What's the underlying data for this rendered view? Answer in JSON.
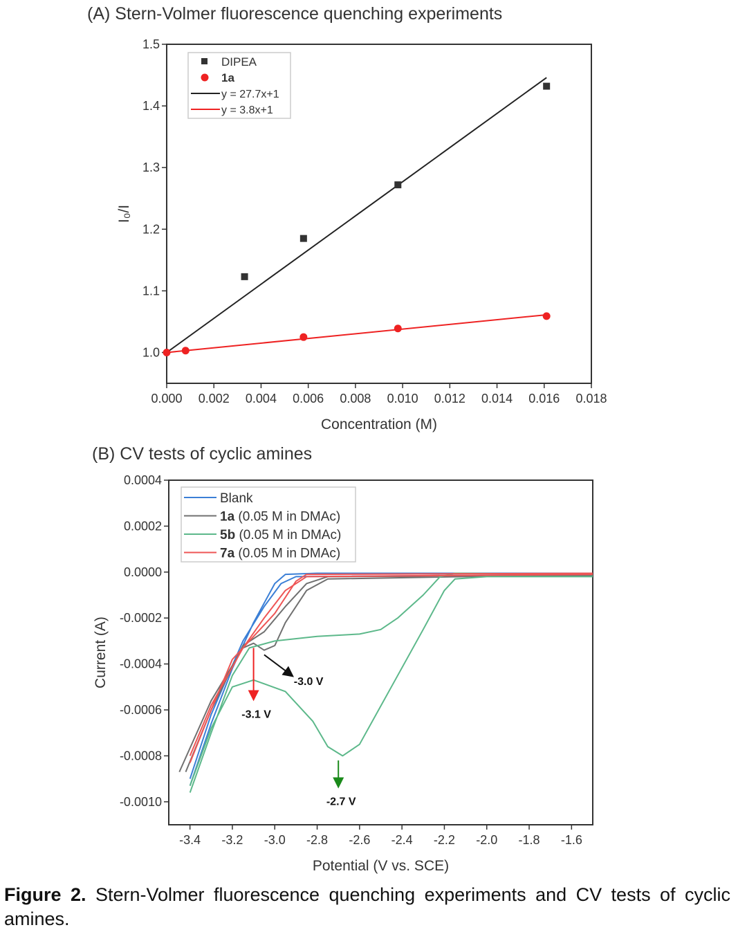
{
  "chart_data": [
    {
      "type": "scatter",
      "title": "(A) Stern-Volmer fluorescence quenching experiments",
      "xlabel": "Concentration (M)",
      "ylabel": "I₀/I",
      "xlim": [
        0.0,
        0.018
      ],
      "ylim": [
        0.95,
        1.5
      ],
      "xticks": [
        "0.000",
        "0.002",
        "0.004",
        "0.006",
        "0.008",
        "0.010",
        "0.012",
        "0.014",
        "0.016",
        "0.018"
      ],
      "yticks": [
        "1.0",
        "1.1",
        "1.2",
        "1.3",
        "1.4",
        "1.5"
      ],
      "grid": false,
      "legend_position": "top-left",
      "series": [
        {
          "name": "DIPEA",
          "marker": "square",
          "color": "#333333",
          "x": [
            0.0033,
            0.0058,
            0.0098,
            0.0161
          ],
          "y": [
            1.123,
            1.185,
            1.272,
            1.432
          ]
        },
        {
          "name": "1a",
          "marker": "circle",
          "color": "#ee2222",
          "x": [
            0.0,
            0.0008,
            0.0058,
            0.0098,
            0.0161
          ],
          "y": [
            1.0,
            1.003,
            1.025,
            1.039,
            1.059
          ]
        }
      ],
      "fits": [
        {
          "name": "y = 27.7x+1",
          "slope": 27.7,
          "intercept": 1,
          "x_range": [
            0,
            0.0161
          ],
          "color": "#222222"
        },
        {
          "name": "y = 3.8x+1",
          "slope": 3.8,
          "intercept": 1,
          "x_range": [
            0,
            0.0161
          ],
          "color": "#ee2222"
        }
      ]
    },
    {
      "type": "line",
      "title": "(B) CV tests of cyclic amines",
      "xlabel": "Potential (V vs. SCE)",
      "ylabel": "Current (A)",
      "xlim": [
        -3.5,
        -1.5
      ],
      "ylim": [
        -0.0011,
        0.0004
      ],
      "xticks": [
        "-3.4",
        "-3.2",
        "-3.0",
        "-2.8",
        "-2.6",
        "-2.4",
        "-2.2",
        "-2.0",
        "-1.8",
        "-1.6"
      ],
      "yticks": [
        "0.0004",
        "0.0002",
        "0.0000",
        "-0.0002",
        "-0.0004",
        "-0.0006",
        "-0.0008",
        "-0.0010"
      ],
      "grid": false,
      "legend_position": "top-left",
      "series": [
        {
          "name_bold": "Blank",
          "name_rest": "",
          "color": "#3b7fd6",
          "points": [
            [
              -3.4,
              -0.00093
            ],
            [
              -3.3,
              -0.00066
            ],
            [
              -3.2,
              -0.00042
            ],
            [
              -3.1,
              -0.00022
            ],
            [
              -3.0,
              -5e-05
            ],
            [
              -2.95,
              -1e-05
            ],
            [
              -2.8,
              -5e-06
            ],
            [
              -1.5,
              -5e-06
            ],
            [
              -1.5,
              -1e-05
            ],
            [
              -2.9,
              -2e-05
            ],
            [
              -2.97,
              -5e-05
            ],
            [
              -3.05,
              -0.00015
            ],
            [
              -3.15,
              -0.0003
            ],
            [
              -3.3,
              -0.00062
            ],
            [
              -3.4,
              -0.0009
            ]
          ]
        },
        {
          "name_bold": "1a",
          "name_rest": " (0.05 M in DMAc)",
          "color": "#707070",
          "points": [
            [
              -3.45,
              -0.00087
            ],
            [
              -3.3,
              -0.00056
            ],
            [
              -3.15,
              -0.00033
            ],
            [
              -3.1,
              -0.00031
            ],
            [
              -3.05,
              -0.00034
            ],
            [
              -3.0,
              -0.00032
            ],
            [
              -2.95,
              -0.00022
            ],
            [
              -2.85,
              -8e-05
            ],
            [
              -2.75,
              -3e-05
            ],
            [
              -1.5,
              -1e-05
            ],
            [
              -1.5,
              -1.5e-05
            ],
            [
              -2.75,
              -2e-05
            ],
            [
              -2.85,
              -5e-05
            ],
            [
              -2.95,
              -0.00015
            ],
            [
              -3.05,
              -0.00026
            ],
            [
              -3.15,
              -0.00032
            ],
            [
              -3.3,
              -0.0006
            ],
            [
              -3.42,
              -0.00087
            ]
          ]
        },
        {
          "name_bold": "5b",
          "name_rest": " (0.05 M in DMAc)",
          "color": "#5cb88a",
          "points": [
            [
              -3.4,
              -0.00096
            ],
            [
              -3.3,
              -0.0007
            ],
            [
              -3.2,
              -0.00045
            ],
            [
              -3.12,
              -0.00033
            ],
            [
              -3.0,
              -0.0003
            ],
            [
              -2.8,
              -0.00028
            ],
            [
              -2.6,
              -0.00027
            ],
            [
              -2.5,
              -0.00025
            ],
            [
              -2.42,
              -0.0002
            ],
            [
              -2.3,
              -0.0001
            ],
            [
              -2.22,
              -2e-05
            ],
            [
              -2.15,
              -5e-06
            ],
            [
              -1.5,
              -1e-05
            ],
            [
              -1.5,
              -2e-05
            ],
            [
              -2.0,
              -2e-05
            ],
            [
              -2.15,
              -3e-05
            ],
            [
              -2.2,
              -8e-05
            ],
            [
              -2.3,
              -0.00025
            ],
            [
              -2.45,
              -0.0005
            ],
            [
              -2.6,
              -0.00075
            ],
            [
              -2.68,
              -0.0008
            ],
            [
              -2.75,
              -0.00076
            ],
            [
              -2.82,
              -0.00065
            ],
            [
              -2.95,
              -0.00052
            ],
            [
              -3.1,
              -0.00047
            ],
            [
              -3.2,
              -0.0005
            ],
            [
              -3.3,
              -0.00068
            ],
            [
              -3.4,
              -0.00093
            ]
          ]
        },
        {
          "name_bold": "7a",
          "name_rest": " (0.05 M in DMAc)",
          "color": "#ee5555",
          "points": [
            [
              -3.4,
              -0.00083
            ],
            [
              -3.3,
              -0.0006
            ],
            [
              -3.2,
              -0.00038
            ],
            [
              -3.1,
              -0.00028
            ],
            [
              -3.0,
              -0.00018
            ],
            [
              -2.9,
              -4e-05
            ],
            [
              -2.85,
              -1e-05
            ],
            [
              -1.5,
              -5e-06
            ],
            [
              -1.5,
              -1e-05
            ],
            [
              -2.85,
              -2e-05
            ],
            [
              -2.95,
              -8e-05
            ],
            [
              -3.05,
              -0.0002
            ],
            [
              -3.15,
              -0.00033
            ],
            [
              -3.3,
              -0.00058
            ],
            [
              -3.4,
              -0.0008
            ]
          ]
        }
      ],
      "annotations": [
        {
          "text": "-3.0 V",
          "color": "#111111",
          "from": [
            -3.05,
            -0.00036
          ],
          "to": [
            -2.92,
            -0.00045
          ]
        },
        {
          "text": "-3.1 V",
          "color": "#ee2222",
          "from": [
            -3.1,
            -0.00033
          ],
          "to": [
            -3.1,
            -0.00055
          ]
        },
        {
          "text": "-2.7 V",
          "color": "#1a8a1a",
          "from": [
            -2.7,
            -0.00082
          ],
          "to": [
            -2.7,
            -0.00093
          ]
        }
      ]
    }
  ],
  "caption": {
    "label": "Figure 2.",
    "text": " Stern-Volmer fluorescence quenching experiments and CV tests of cyclic amines."
  }
}
